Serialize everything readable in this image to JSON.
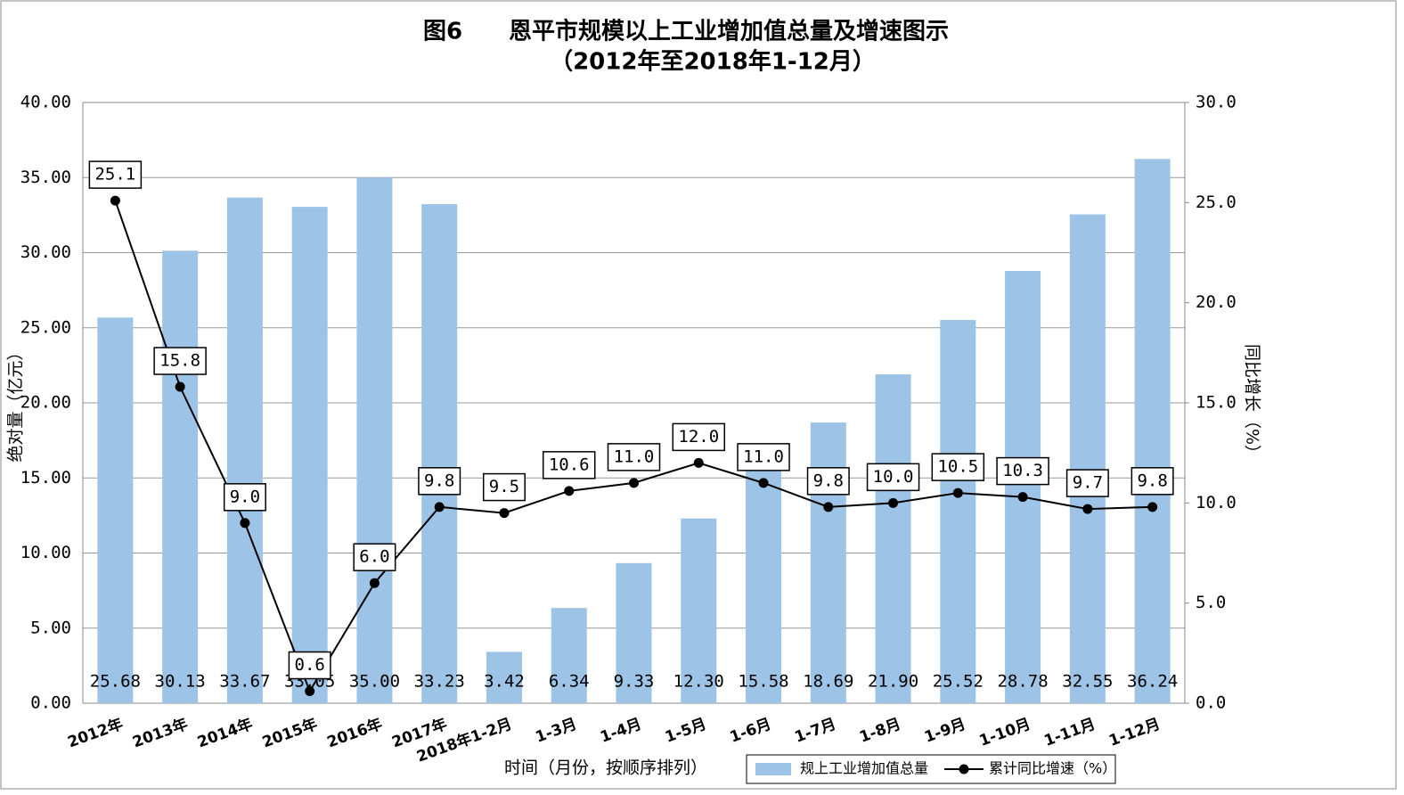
{
  "chart_data": {
    "type": "bar-line",
    "title": "图6　　恩平市规模以上工业增加值总量及增速图示",
    "subtitle": "（2012年至2018年1-12月）",
    "x_label": "时间（月份，按顺序排列）",
    "y_label": "绝对量（亿元）",
    "y2_label": "同比增长（%）",
    "categories": [
      "2012年",
      "2013年",
      "2014年",
      "2015年",
      "2016年",
      "2017年",
      "2018年1-2月",
      "1-3月",
      "1-4月",
      "1-5月",
      "1-6月",
      "1-7月",
      "1-8月",
      "1-9月",
      "1-10月",
      "1-11月",
      "1-12月"
    ],
    "series": [
      {
        "name": "规上工业增加值总量",
        "type": "bar",
        "color": "#9dc3e6",
        "values": [
          25.68,
          30.13,
          33.67,
          33.05,
          35.0,
          33.23,
          3.42,
          6.34,
          9.33,
          12.3,
          15.58,
          18.69,
          21.9,
          25.52,
          28.78,
          32.55,
          36.24
        ],
        "value_labels": [
          "25.68",
          "30.13",
          "33.67",
          "33.05",
          "35.00",
          "33.23",
          "3.42",
          "6.34",
          "9.33",
          "12.30",
          "15.58",
          "18.69",
          "21.90",
          "25.52",
          "28.78",
          "32.55",
          "36.24"
        ]
      },
      {
        "name": "累计同比增速（%）",
        "type": "line",
        "color": "#000000",
        "axis": "y2",
        "values": [
          25.1,
          15.8,
          9.0,
          0.6,
          6.0,
          9.8,
          9.5,
          10.6,
          11.0,
          12.0,
          11.0,
          9.8,
          10.0,
          10.5,
          10.3,
          9.7,
          9.8
        ],
        "value_labels": [
          "25.1",
          "15.8",
          "9.0",
          "0.6",
          "6.0",
          "9.8",
          "9.5",
          "10.6",
          "11.0",
          "12.0",
          "11.0",
          "9.8",
          "10.0",
          "10.5",
          "10.3",
          "9.7",
          "9.8"
        ]
      }
    ],
    "ylim": [
      0,
      40
    ],
    "yticks": [
      {
        "value": 0,
        "label": "0.00"
      },
      {
        "value": 5,
        "label": "5.00"
      },
      {
        "value": 10,
        "label": "10.00"
      },
      {
        "value": 15,
        "label": "15.00"
      },
      {
        "value": 20,
        "label": "20.00"
      },
      {
        "value": 25,
        "label": "25.00"
      },
      {
        "value": 30,
        "label": "30.00"
      },
      {
        "value": 35,
        "label": "35.00"
      },
      {
        "value": 40,
        "label": "40.00"
      }
    ],
    "y2lim": [
      0,
      30
    ],
    "y2ticks": [
      {
        "value": 0,
        "label": "0.0"
      },
      {
        "value": 5,
        "label": "5.0"
      },
      {
        "value": 10,
        "label": "10.0"
      },
      {
        "value": 15,
        "label": "15.0"
      },
      {
        "value": 20,
        "label": "20.0"
      },
      {
        "value": 25,
        "label": "25.0"
      },
      {
        "value": 30,
        "label": "30.0"
      }
    ],
    "grid": true,
    "legend": "bottom"
  }
}
